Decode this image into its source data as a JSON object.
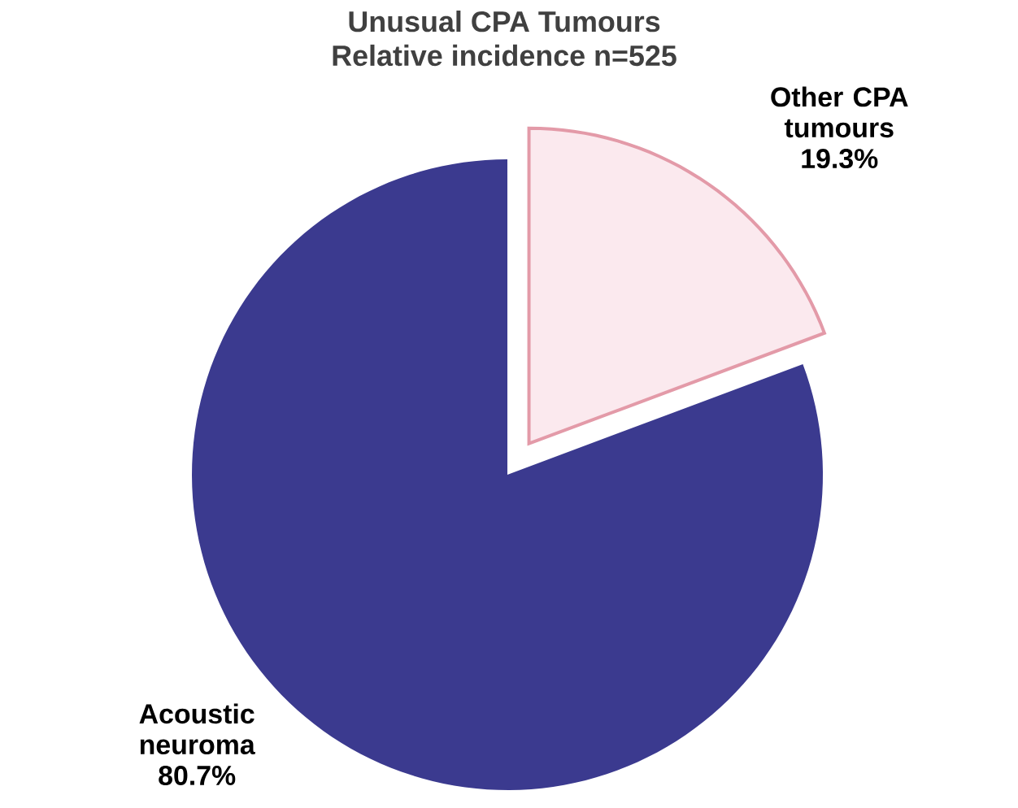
{
  "chart_data": {
    "type": "pie",
    "title": "Unusual CPA Tumours",
    "subtitle": "Relative incidence   n=525",
    "categories": [
      "Acoustic neuroma",
      "Other CPA tumours"
    ],
    "values": [
      80.7,
      19.3
    ],
    "colors": [
      "#3b3a8f",
      "#fbe9ee"
    ],
    "value_labels": [
      "80.7%",
      "19.3%"
    ]
  }
}
